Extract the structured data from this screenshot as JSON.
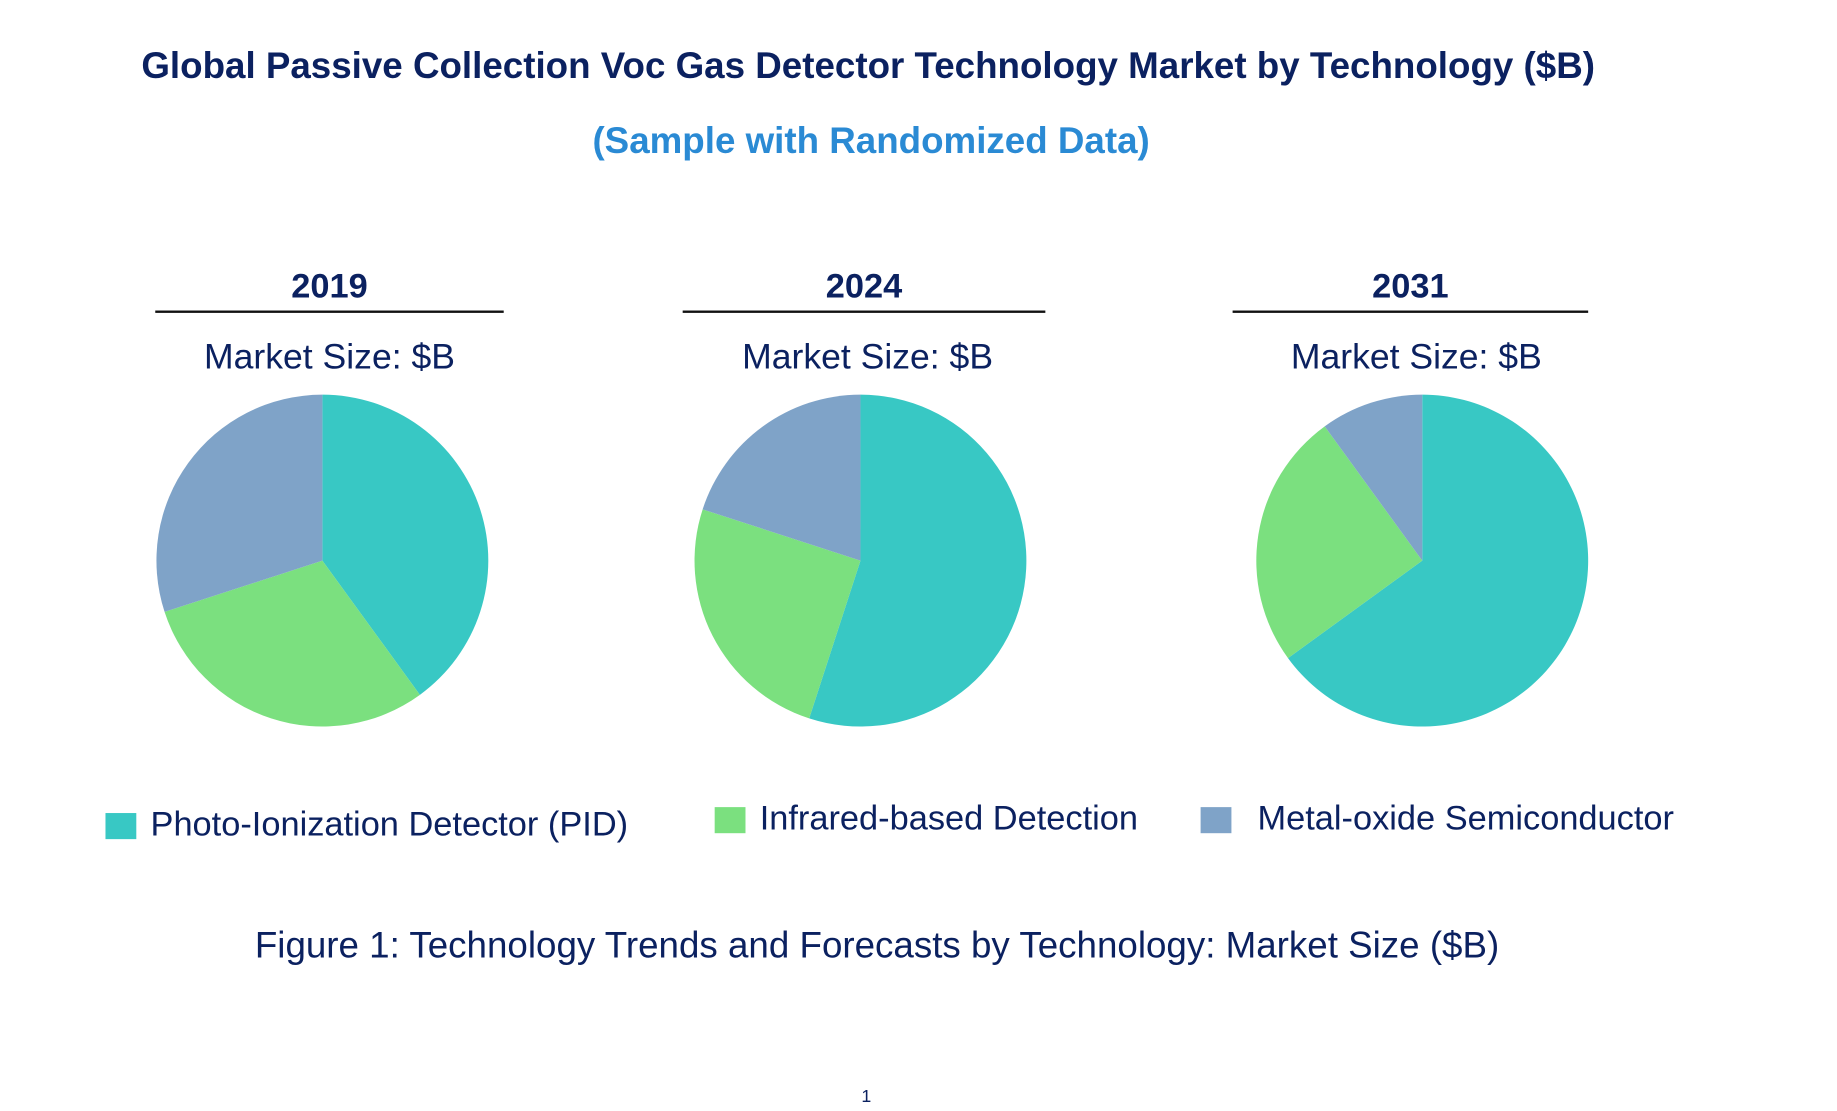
{
  "title": "Global Passive Collection Voc Gas Detector Technology Market by Technology ($B)",
  "subtitle": "(Sample with Randomized Data)",
  "chart_data": [
    {
      "type": "pie",
      "title": "2019",
      "label": "Market Size: $B",
      "categories": [
        "Photo-Ionization Detector (PID)",
        "Infrared-based Detection",
        "Metal-oxide Semiconductor"
      ],
      "values": [
        40,
        30,
        30
      ]
    },
    {
      "type": "pie",
      "title": "2024",
      "label": "Market Size: $B",
      "categories": [
        "Photo-Ionization Detector (PID)",
        "Infrared-based Detection",
        "Metal-oxide Semiconductor"
      ],
      "values": [
        55,
        25,
        20
      ]
    },
    {
      "type": "pie",
      "title": "2031",
      "label": "Market Size: $B",
      "categories": [
        "Photo-Ionization Detector (PID)",
        "Infrared-based Detection",
        "Metal-oxide Semiconductor"
      ],
      "values": [
        65,
        25,
        10
      ]
    }
  ],
  "legend": {
    "placement": "bottom",
    "items": [
      {
        "label": "Photo-Ionization Detector (PID)",
        "color": "#38c8c4"
      },
      {
        "label": "Infrared-based Detection",
        "color": "#7be07f"
      },
      {
        "label": "Metal-oxide Semiconductor",
        "color": "#7fa3c8"
      }
    ]
  },
  "caption": "Figure 1: Technology Trends and Forecasts by Technology: Market Size ($B)",
  "page_number": "1"
}
